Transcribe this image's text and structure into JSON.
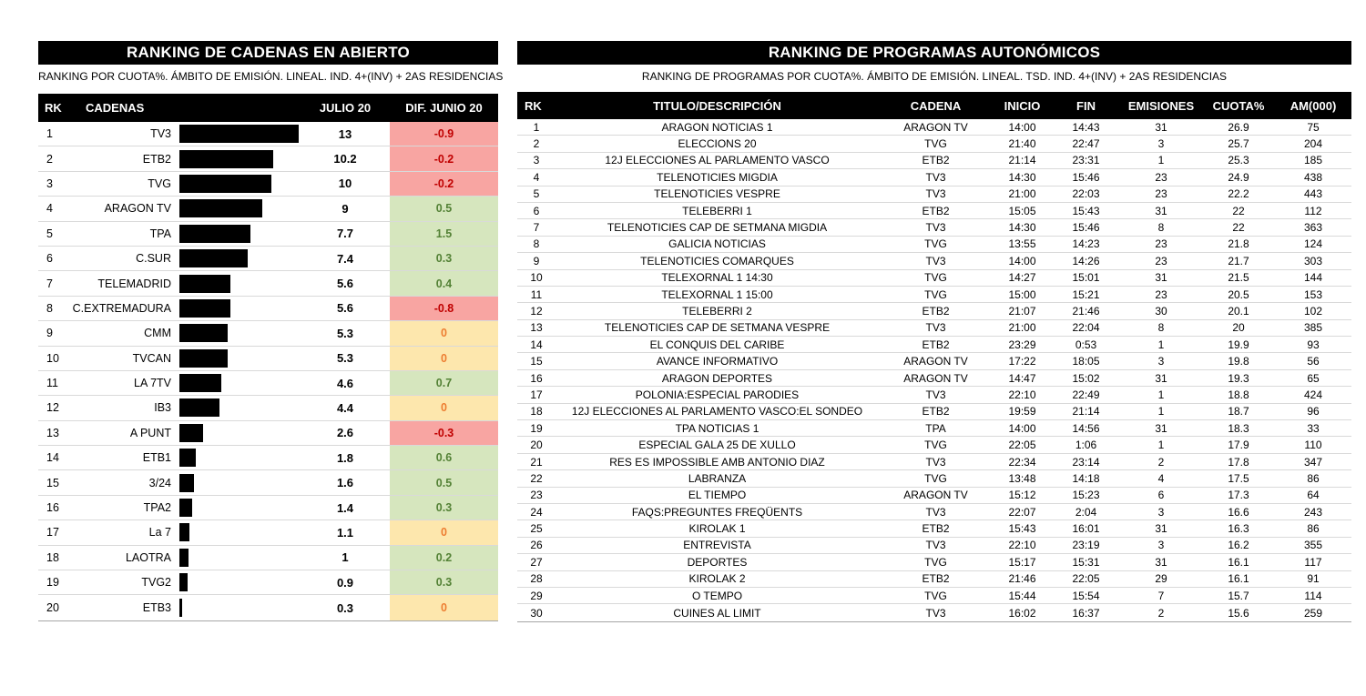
{
  "colors": {
    "header_bg": "#000000",
    "header_text": "#ffffff",
    "bar": "#000000",
    "row_border": "#d9d9d9",
    "positive_bg": "#d6e6be",
    "positive_text": "#538135",
    "negative_bg": "#f8a5a2",
    "negative_text": "#c00000",
    "zero_bg": "#fde7ad",
    "zero_text": "#ed7d31"
  },
  "chart_data": [
    {
      "id": "cadenas",
      "type": "bar",
      "orientation": "horizontal",
      "title": "RANKING DE CADENAS EN ABIERTO",
      "subtitle": "RANKING POR CUOTA%. ÁMBITO DE EMISIÓN. LINEAL. IND. 4+(INV) + 2AS RESIDENCIAS",
      "columns": [
        "RK",
        "CADENAS",
        "JULIO 20",
        "DIF. JUNIO 20"
      ],
      "categories": [
        "TV3",
        "ETB2",
        "TVG",
        "ARAGON TV",
        "TPA",
        "C.SUR",
        "TELEMADRID",
        "C.EXTREMADURA",
        "CMM",
        "TVCAN",
        "LA 7TV",
        "IB3",
        "A PUNT",
        "ETB1",
        "3/24",
        "TPA2",
        "La 7",
        "LAOTRA",
        "TVG2",
        "ETB3"
      ],
      "series": [
        {
          "name": "JULIO 20",
          "values": [
            13,
            10.2,
            10,
            9,
            7.7,
            7.4,
            5.6,
            5.6,
            5.3,
            5.3,
            4.6,
            4.4,
            2.6,
            1.8,
            1.6,
            1.4,
            1.1,
            1,
            0.9,
            0.3
          ]
        },
        {
          "name": "DIF. JUNIO 20",
          "values": [
            -0.9,
            -0.2,
            -0.2,
            0.5,
            1.5,
            0.3,
            0.4,
            -0.8,
            0,
            0,
            0.7,
            0,
            -0.3,
            0.6,
            0.5,
            0.3,
            0,
            0.2,
            0.3,
            0
          ]
        }
      ],
      "xlim": [
        0,
        13
      ],
      "bar_color": "#000000",
      "grid": false,
      "legend": false
    },
    {
      "id": "programas",
      "type": "table",
      "title": "RANKING DE PROGRAMAS AUTONÓMICOS",
      "subtitle": "RANKING DE PROGRAMAS POR CUOTA%. ÁMBITO DE EMISIÓN. LINEAL. TSD. IND. 4+(INV) + 2AS RESIDENCIAS",
      "columns": [
        "RK",
        "TITULO/DESCRIPCIÓN",
        "CADENA",
        "INICIO",
        "FIN",
        "EMISIONES",
        "CUOTA%",
        "AM(000)"
      ],
      "rows": [
        [
          "1",
          "ARAGON NOTICIAS 1",
          "ARAGON TV",
          "14:00",
          "14:43",
          "31",
          "26.9",
          "75"
        ],
        [
          "2",
          "ELECCIONS 20",
          "TVG",
          "21:40",
          "22:47",
          "3",
          "25.7",
          "204"
        ],
        [
          "3",
          "12J ELECCIONES AL PARLAMENTO VASCO",
          "ETB2",
          "21:14",
          "23:31",
          "1",
          "25.3",
          "185"
        ],
        [
          "4",
          "TELENOTICIES MIGDIA",
          "TV3",
          "14:30",
          "15:46",
          "23",
          "24.9",
          "438"
        ],
        [
          "5",
          "TELENOTICIES VESPRE",
          "TV3",
          "21:00",
          "22:03",
          "23",
          "22.2",
          "443"
        ],
        [
          "6",
          "TELEBERRI 1",
          "ETB2",
          "15:05",
          "15:43",
          "31",
          "22",
          "112"
        ],
        [
          "7",
          "TELENOTICIES CAP DE SETMANA MIGDIA",
          "TV3",
          "14:30",
          "15:46",
          "8",
          "22",
          "363"
        ],
        [
          "8",
          "GALICIA NOTICIAS",
          "TVG",
          "13:55",
          "14:23",
          "23",
          "21.8",
          "124"
        ],
        [
          "9",
          "TELENOTICIES COMARQUES",
          "TV3",
          "14:00",
          "14:26",
          "23",
          "21.7",
          "303"
        ],
        [
          "10",
          "TELEXORNAL 1 14:30",
          "TVG",
          "14:27",
          "15:01",
          "31",
          "21.5",
          "144"
        ],
        [
          "11",
          "TELEXORNAL 1 15:00",
          "TVG",
          "15:00",
          "15:21",
          "23",
          "20.5",
          "153"
        ],
        [
          "12",
          "TELEBERRI 2",
          "ETB2",
          "21:07",
          "21:46",
          "30",
          "20.1",
          "102"
        ],
        [
          "13",
          "TELENOTICIES CAP DE SETMANA VESPRE",
          "TV3",
          "21:00",
          "22:04",
          "8",
          "20",
          "385"
        ],
        [
          "14",
          "EL CONQUIS DEL CARIBE",
          "ETB2",
          "23:29",
          "0:53",
          "1",
          "19.9",
          "93"
        ],
        [
          "15",
          "AVANCE INFORMATIVO",
          "ARAGON TV",
          "17:22",
          "18:05",
          "3",
          "19.8",
          "56"
        ],
        [
          "16",
          "ARAGON DEPORTES",
          "ARAGON TV",
          "14:47",
          "15:02",
          "31",
          "19.3",
          "65"
        ],
        [
          "17",
          "POLONIA:ESPECIAL PARODIES",
          "TV3",
          "22:10",
          "22:49",
          "1",
          "18.8",
          "424"
        ],
        [
          "18",
          "12J ELECCIONES AL PARLAMENTO VASCO:EL SONDEO",
          "ETB2",
          "19:59",
          "21:14",
          "1",
          "18.7",
          "96"
        ],
        [
          "19",
          "TPA NOTICIAS 1",
          "TPA",
          "14:00",
          "14:56",
          "31",
          "18.3",
          "33"
        ],
        [
          "20",
          "ESPECIAL GALA 25 DE XULLO",
          "TVG",
          "22:05",
          "1:06",
          "1",
          "17.9",
          "110"
        ],
        [
          "21",
          "RES ES IMPOSSIBLE AMB ANTONIO DIAZ",
          "TV3",
          "22:34",
          "23:14",
          "2",
          "17.8",
          "347"
        ],
        [
          "22",
          "LABRANZA",
          "TVG",
          "13:48",
          "14:18",
          "4",
          "17.5",
          "86"
        ],
        [
          "23",
          "EL TIEMPO",
          "ARAGON TV",
          "15:12",
          "15:23",
          "6",
          "17.3",
          "64"
        ],
        [
          "24",
          "FAQS:PREGUNTES FREQÜENTS",
          "TV3",
          "22:07",
          "2:04",
          "3",
          "16.6",
          "243"
        ],
        [
          "25",
          "KIROLAK 1",
          "ETB2",
          "15:43",
          "16:01",
          "31",
          "16.3",
          "86"
        ],
        [
          "26",
          "ENTREVISTA",
          "TV3",
          "22:10",
          "23:19",
          "3",
          "16.2",
          "355"
        ],
        [
          "27",
          "DEPORTES",
          "TVG",
          "15:17",
          "15:31",
          "31",
          "16.1",
          "117"
        ],
        [
          "28",
          "KIROLAK 2",
          "ETB2",
          "21:46",
          "22:05",
          "29",
          "16.1",
          "91"
        ],
        [
          "29",
          "O TEMPO",
          "TVG",
          "15:44",
          "15:54",
          "7",
          "15.7",
          "114"
        ],
        [
          "30",
          "CUINES AL LIMIT",
          "TV3",
          "16:02",
          "16:37",
          "2",
          "15.6",
          "259"
        ]
      ]
    }
  ]
}
